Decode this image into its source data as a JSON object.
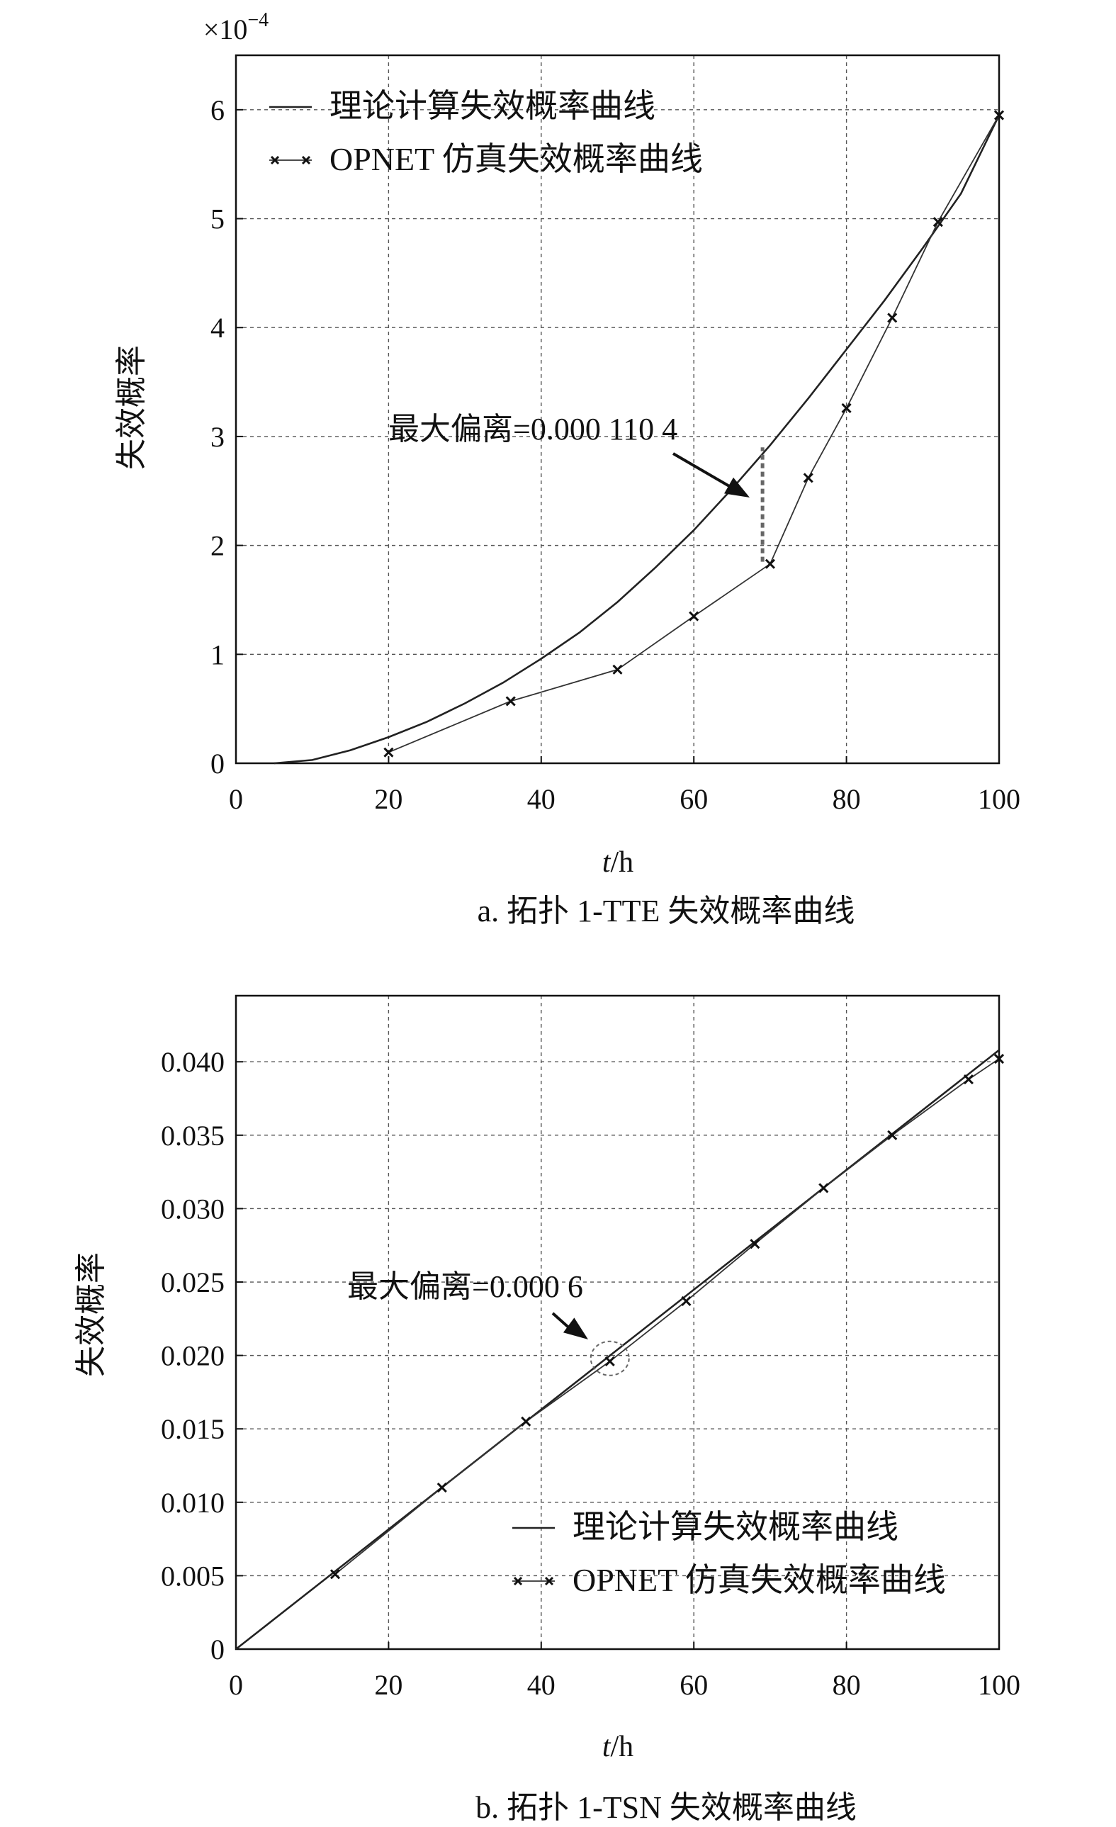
{
  "chart_data": [
    {
      "type": "line",
      "caption": "a. 拓扑 1-TTE 失效概率曲线",
      "xlabel_var": "t",
      "xlabel_unit": "/h",
      "ylabel": "失效概率",
      "y_multiplier": "×10",
      "y_multiplier_exp": "−4",
      "xlim": [
        0,
        100
      ],
      "ylim": [
        0,
        6.5
      ],
      "xticks": [
        0,
        20,
        40,
        60,
        80,
        100
      ],
      "yticks": [
        0,
        1,
        2,
        3,
        4,
        5,
        6
      ],
      "ytick_labels": [
        "0",
        "1",
        "2",
        "3",
        "4",
        "5",
        "6"
      ],
      "grid": true,
      "legend_position": "top-left",
      "series": [
        {
          "name": "理论计算失效概率曲线",
          "style": "line",
          "x": [
            5,
            10,
            15,
            20,
            25,
            30,
            35,
            40,
            45,
            50,
            55,
            60,
            65,
            70,
            75,
            80,
            85,
            90,
            95,
            100
          ],
          "y": [
            0.0,
            0.03,
            0.12,
            0.24,
            0.38,
            0.55,
            0.74,
            0.96,
            1.2,
            1.48,
            1.8,
            2.14,
            2.52,
            2.92,
            3.35,
            3.8,
            4.25,
            4.73,
            5.23,
            5.95
          ]
        },
        {
          "name": "OPNET 仿真失效概率曲线",
          "style": "line-x-marker",
          "x": [
            20,
            36,
            50,
            60,
            70,
            75,
            80,
            86,
            92,
            100
          ],
          "y": [
            0.1,
            0.57,
            0.86,
            1.35,
            1.83,
            2.62,
            3.26,
            4.09,
            4.97,
            5.95
          ]
        }
      ],
      "annotation": {
        "text": "最大偏离=0.000 110 4",
        "x": 69,
        "y_from": 1.85,
        "y_to": 2.9
      }
    },
    {
      "type": "line",
      "caption": "b. 拓扑 1-TSN 失效概率曲线",
      "xlabel_var": "t",
      "xlabel_unit": "/h",
      "ylabel": "失效概率",
      "xlim": [
        0,
        100
      ],
      "ylim": [
        0,
        0.0445
      ],
      "xticks": [
        0,
        20,
        40,
        60,
        80,
        100
      ],
      "yticks": [
        0,
        0.005,
        0.01,
        0.015,
        0.02,
        0.025,
        0.03,
        0.035,
        0.04
      ],
      "ytick_labels": [
        "0",
        "0.005",
        "0.010",
        "0.015",
        "0.020",
        "0.025",
        "0.030",
        "0.035",
        "0.040"
      ],
      "grid": true,
      "legend_position": "bottom-right",
      "series": [
        {
          "name": "理论计算失效概率曲线",
          "style": "line",
          "x": [
            0,
            100
          ],
          "y": [
            0,
            0.0408
          ]
        },
        {
          "name": "OPNET 仿真失效概率曲线",
          "style": "line-x-marker",
          "x": [
            13,
            27,
            38,
            49,
            59,
            68,
            77,
            86,
            96,
            100
          ],
          "y": [
            0.0051,
            0.011,
            0.0155,
            0.0196,
            0.0237,
            0.0276,
            0.0314,
            0.035,
            0.0388,
            0.0402
          ]
        }
      ],
      "annotation": {
        "text": "最大偏离=0.000 6",
        "x": 49,
        "y": 0.0198
      }
    }
  ]
}
